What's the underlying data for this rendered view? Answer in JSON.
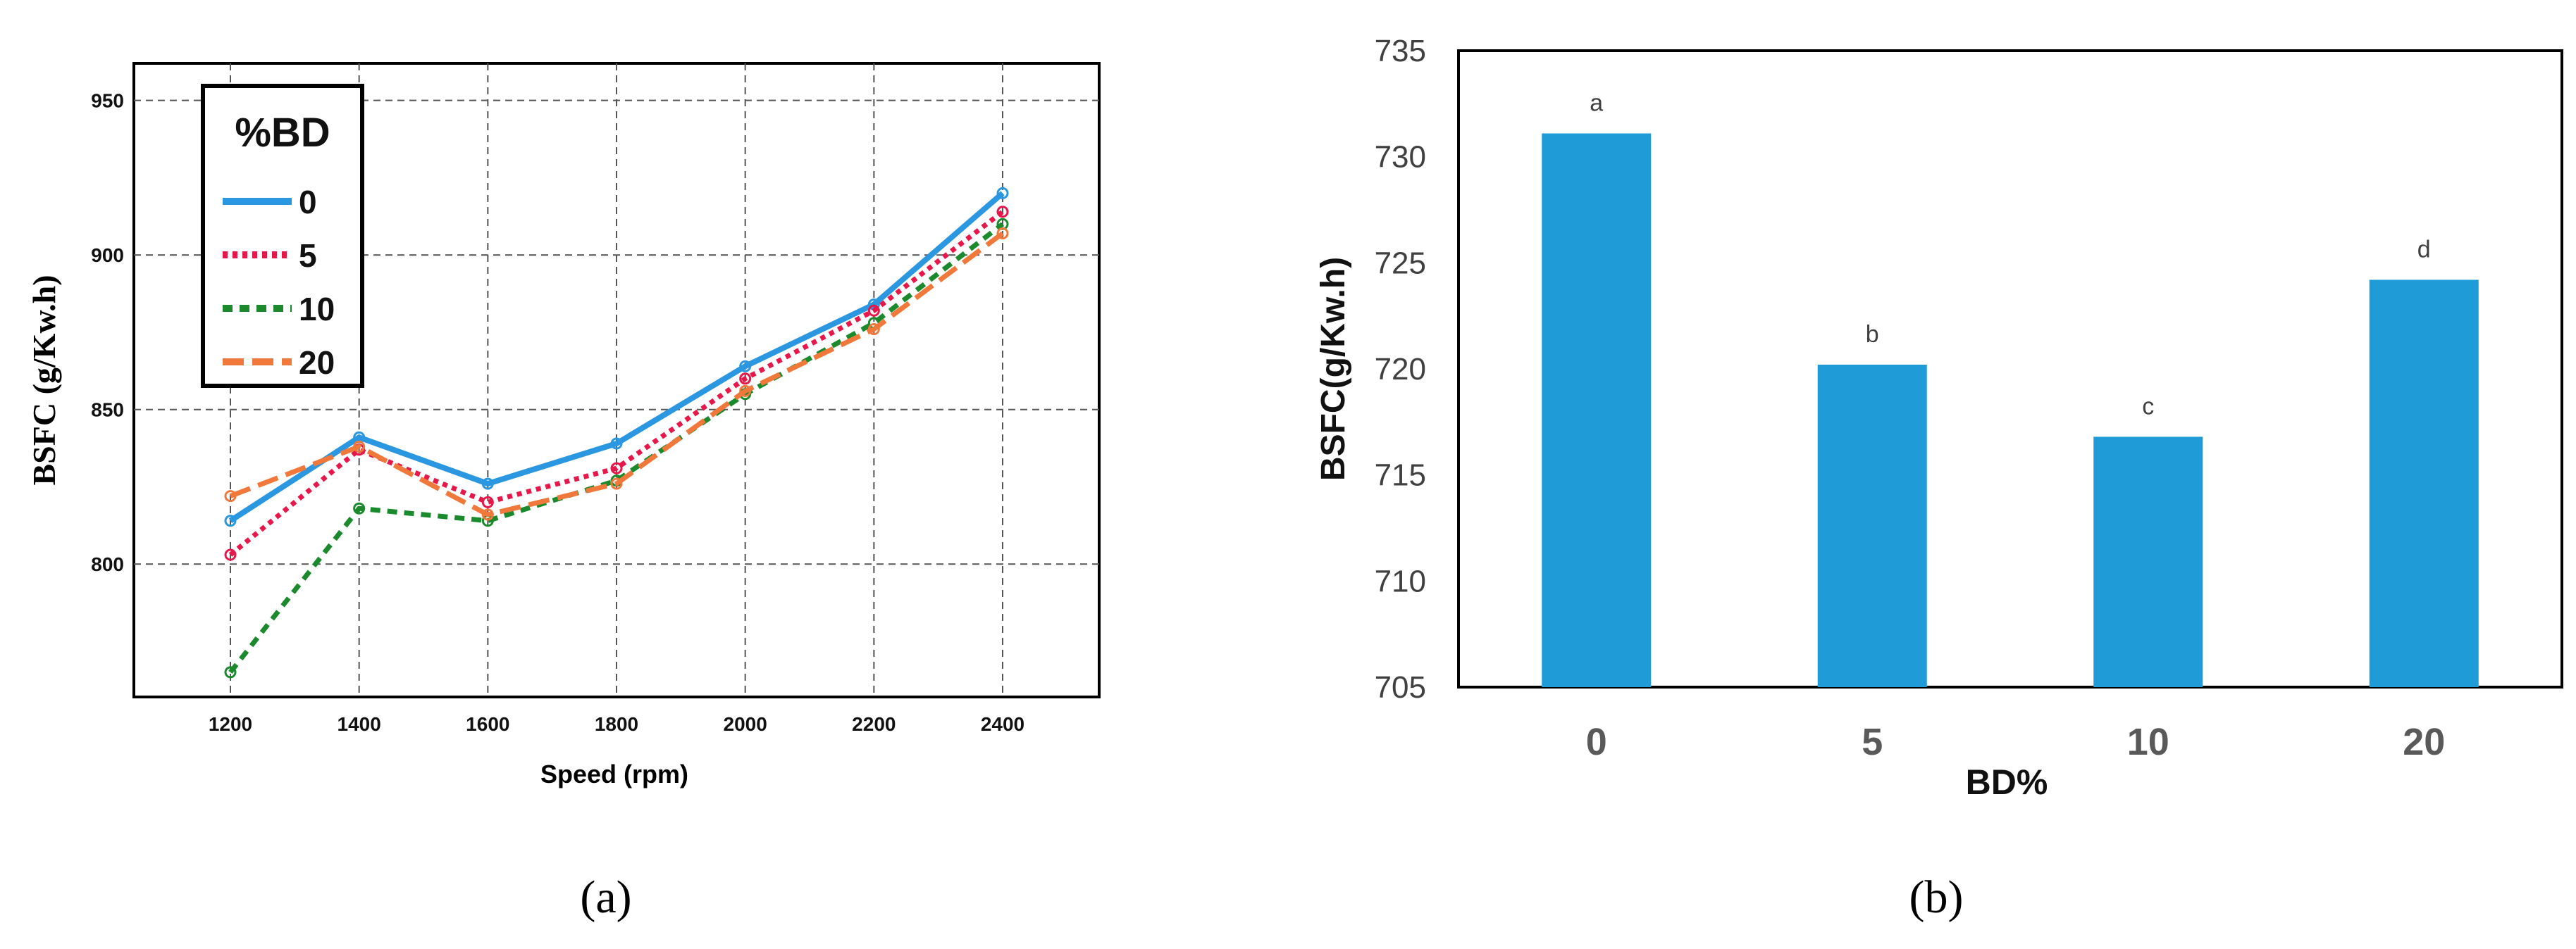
{
  "panels": {
    "a": {
      "caption": "(a)"
    },
    "b": {
      "caption": "(b)"
    }
  },
  "chart_data": [
    {
      "type": "line",
      "xlabel": "Speed (rpm)",
      "ylabel": "BSFC (g/Kw.h)",
      "x": [
        1200,
        1400,
        1600,
        1800,
        2000,
        2200,
        2400
      ],
      "xlim": [
        1050,
        2550
      ],
      "ylim": [
        757,
        962
      ],
      "yticks": [
        800,
        850,
        900,
        950
      ],
      "grid": true,
      "legend": {
        "title": "%BD",
        "position": "top-left"
      },
      "series": [
        {
          "name": "0",
          "color": "#2a97e0",
          "style": "solid",
          "values": [
            814,
            841,
            826,
            839,
            864,
            884,
            920
          ]
        },
        {
          "name": "5",
          "color": "#e8174a",
          "style": "dotted",
          "values": [
            803,
            837,
            820,
            831,
            860,
            882,
            914
          ]
        },
        {
          "name": "10",
          "color": "#1a8a2c",
          "style": "dashed",
          "values": [
            765,
            818,
            814,
            827,
            855,
            878,
            910
          ]
        },
        {
          "name": "20",
          "color": "#f0783a",
          "style": "longdash",
          "values": [
            822,
            838,
            816,
            826,
            856,
            876,
            907
          ]
        }
      ]
    },
    {
      "type": "bar",
      "categories": [
        "0",
        "5",
        "10",
        "20"
      ],
      "values": [
        731.1,
        720.2,
        716.8,
        724.2
      ],
      "labels": [
        "a",
        "b",
        "c",
        "d"
      ],
      "xlabel": "BD%",
      "ylabel": "BSFC(g/Kw.h)",
      "ylim": [
        705,
        735
      ],
      "yticks": [
        705,
        710,
        715,
        720,
        725,
        730,
        735
      ],
      "bar_color": "#1f9bd8",
      "grid": false
    }
  ]
}
